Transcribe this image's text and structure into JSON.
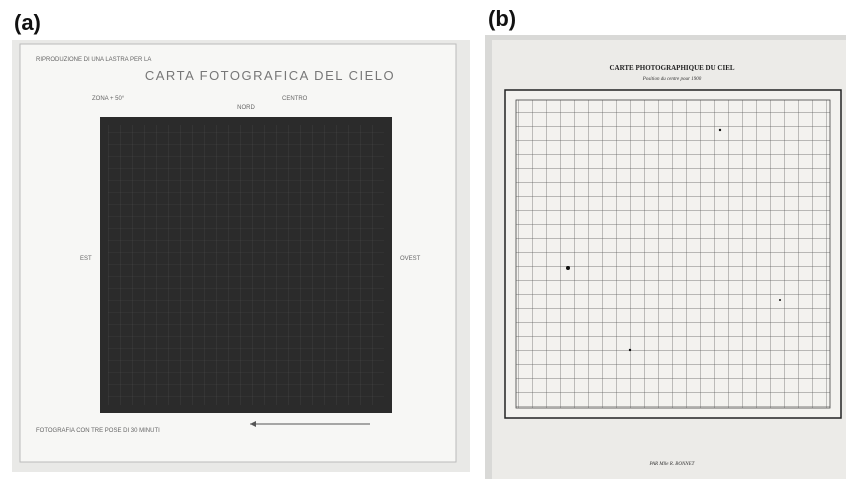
{
  "panel_a": {
    "label": "(a)",
    "header": "RIPRODUZIONE DI UNA LASTRA PER LA",
    "title": "CARTA FOTOGRAFICA DEL CIELO",
    "zone": "ZONA + 50°",
    "center": "CENTRO",
    "north": "NORD",
    "east": "EST",
    "west": "OVEST",
    "footer": "FOTOGRAFIA CON TRE POSE DI 30 MINUTI"
  },
  "panel_b": {
    "label": "(b)",
    "title": "CARTE PHOTOGRAPHIQUE DU CIEL",
    "subtitle": "Position du centre pour 1900",
    "author": "PAR Mlle R. BONNET"
  }
}
